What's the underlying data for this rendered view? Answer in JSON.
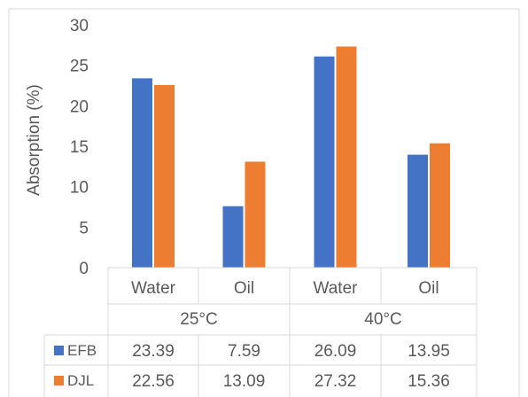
{
  "chart_data": {
    "type": "bar",
    "ylabel": "Absorption (%)",
    "ylim": [
      0,
      30
    ],
    "yticks": [
      "0",
      "5",
      "10",
      "15",
      "20",
      "25",
      "30"
    ],
    "grid": false,
    "legend": "data-table",
    "categories": [
      "Water",
      "Oil",
      "Water",
      "Oil"
    ],
    "groups": [
      {
        "label": "25°C",
        "span": [
          0,
          1
        ]
      },
      {
        "label": "40°C",
        "span": [
          2,
          3
        ]
      }
    ],
    "series": [
      {
        "name": "EFB",
        "color": "#4472C4",
        "values": [
          23.39,
          7.59,
          26.09,
          13.95
        ],
        "labels": [
          "23.39",
          "7.59",
          "26.09",
          "13.95"
        ]
      },
      {
        "name": "DJL",
        "color": "#ED7D31",
        "values": [
          22.56,
          13.09,
          27.32,
          15.36
        ],
        "labels": [
          "22.56",
          "13.09",
          "27.32",
          "15.36"
        ]
      }
    ]
  }
}
